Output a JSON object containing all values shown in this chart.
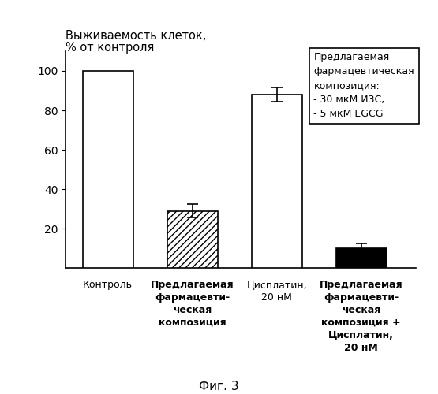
{
  "categories": [
    "Контроль",
    "Предлагаемая\nфармацевти-\nческая\nкомпозиция",
    "Цисплатин,\n20 нМ",
    "Предлагаемая\nфармацевти-\nческая\nкомпозиция +\nЦисплатин,\n20 нМ"
  ],
  "values": [
    100,
    29,
    88,
    10
  ],
  "errors": [
    0,
    3.5,
    3.5,
    2.5
  ],
  "bar_colors": [
    "white",
    "white_hatch",
    "white",
    "black"
  ],
  "hatch_patterns": [
    "",
    "////",
    "",
    ""
  ],
  "ylabel_line1": "Выживаемость клеток,",
  "ylabel_line2": "% от контроля",
  "ylim": [
    0,
    110
  ],
  "yticks": [
    20,
    40,
    60,
    80,
    100
  ],
  "figure_caption": "Фиг. 3",
  "legend_title": "Предлагаемая\nфармацевтическая\nкомпозиция:",
  "legend_line1": "- 30 мкМ И3С,",
  "legend_line2": "- 5 мкМ EGCG",
  "background_color": "#ffffff",
  "edge_color": "#000000",
  "bar_width": 0.6,
  "tick_fontsize": 10,
  "label_fontsize": 10,
  "caption_fontsize": 11
}
